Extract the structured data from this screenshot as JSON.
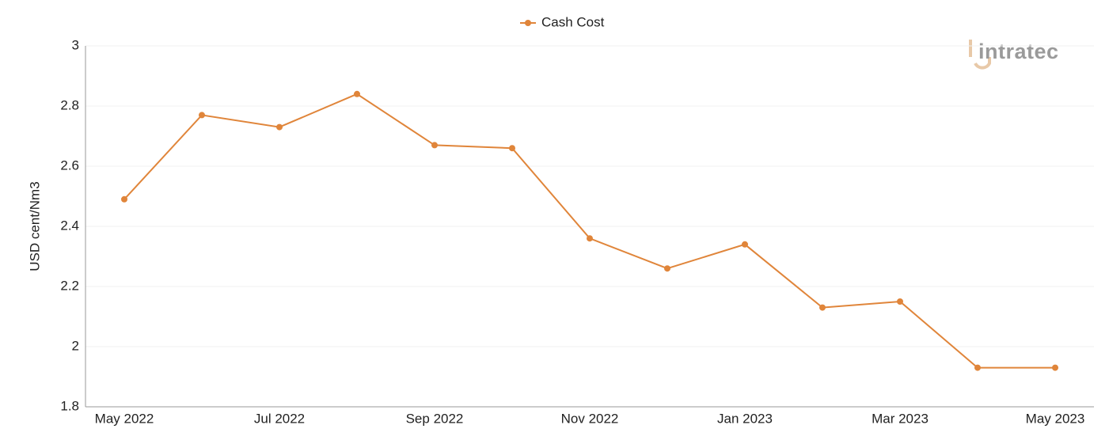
{
  "logo": "intratec",
  "chart_data": {
    "type": "line",
    "y_label": "USD cent/Nm3",
    "categories": [
      "May 2022",
      null,
      "Jul 2022",
      null,
      "Sep 2022",
      null,
      "Nov 2022",
      null,
      "Jan 2023",
      null,
      "Mar 2023",
      null,
      "May 2023"
    ],
    "series": [
      {
        "name": "Cash Cost",
        "color": "#e0853a",
        "values": [
          2.49,
          2.77,
          2.73,
          2.84,
          2.67,
          2.66,
          2.36,
          2.26,
          2.34,
          2.13,
          2.15,
          1.93,
          1.93
        ]
      }
    ],
    "ylim": [
      1.8,
      3
    ],
    "yticks": [
      1.8,
      2,
      2.2,
      2.4,
      2.6,
      2.8,
      3
    ],
    "grid": true,
    "legend": "top"
  }
}
